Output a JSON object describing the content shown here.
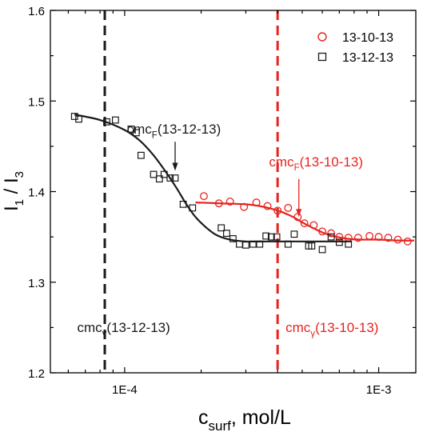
{
  "chart_data": {
    "type": "scatter",
    "title": "",
    "xlabel": {
      "main": "c",
      "sub": "surf",
      "rest": ",  mol/L"
    },
    "ylabel": {
      "p1": "I",
      "s1": "1",
      "p2": " / I",
      "s2": "3"
    },
    "x_scale": "log",
    "xlim": [
      5.1e-05,
      0.0014
    ],
    "ylim": [
      1.2,
      1.6
    ],
    "x_ticks": [
      {
        "value": 0.0001,
        "label": "1E-4"
      },
      {
        "value": 0.001,
        "label": "1E-3"
      }
    ],
    "y_ticks": [
      {
        "value": 1.2,
        "label": "1.2"
      },
      {
        "value": 1.3,
        "label": "1.3"
      },
      {
        "value": 1.4,
        "label": "1.4"
      },
      {
        "value": 1.5,
        "label": "1.5"
      },
      {
        "value": 1.6,
        "label": "1.6"
      }
    ],
    "legend_position": "top-right",
    "series": [
      {
        "name": "13-10-13",
        "marker": "circle",
        "color": "#e8231e",
        "x": [
          0.000205,
          0.000235,
          0.00026,
          0.000295,
          0.00033,
          0.000365,
          0.0004,
          0.00044,
          0.00048,
          0.00051,
          0.000555,
          0.0006,
          0.00065,
          0.0007,
          0.00076,
          0.00083,
          0.00092,
          0.001,
          0.00109,
          0.00119,
          0.0013
        ],
        "y": [
          1.395,
          1.387,
          1.389,
          1.383,
          1.388,
          1.384,
          1.379,
          1.382,
          1.372,
          1.365,
          1.363,
          1.356,
          1.354,
          1.35,
          1.349,
          1.349,
          1.351,
          1.35,
          1.349,
          1.347,
          1.345
        ],
        "fit_x": [
          0.00019,
          0.00024,
          0.0003,
          0.00034,
          0.00038,
          0.00042,
          0.00046,
          0.0005,
          0.00055,
          0.0006,
          0.00066,
          0.00075,
          0.00085,
          0.001,
          0.0012,
          0.00138
        ],
        "fit_y": [
          1.388,
          1.387,
          1.386,
          1.384,
          1.381,
          1.377,
          1.372,
          1.366,
          1.36,
          1.355,
          1.351,
          1.348,
          1.347,
          1.347,
          1.346,
          1.346
        ]
      },
      {
        "name": "13-12-13",
        "marker": "square",
        "color": "#1a1a1a",
        "x": [
          6.35e-05,
          6.6e-05,
          8.5e-05,
          9.2e-05,
          0.000106,
          0.000111,
          0.000116,
          0.00013,
          0.000137,
          0.000143,
          0.000151,
          0.000158,
          0.00017,
          0.000185,
          0.00024,
          0.000252,
          0.000267,
          0.000283,
          0.0003,
          0.00032,
          0.00034,
          0.00036,
          0.000378,
          0.000397,
          0.00044,
          0.000465,
          0.00053,
          0.000545,
          0.0006,
          0.00065,
          0.0007,
          0.00076
        ],
        "y": [
          1.483,
          1.48,
          1.477,
          1.479,
          1.469,
          1.465,
          1.44,
          1.419,
          1.414,
          1.419,
          1.415,
          1.415,
          1.386,
          1.382,
          1.36,
          1.354,
          1.348,
          1.342,
          1.341,
          1.342,
          1.342,
          1.351,
          1.35,
          1.35,
          1.342,
          1.353,
          1.34,
          1.34,
          1.336,
          1.35,
          1.344,
          1.342
        ],
        "fit_x": [
          6.35e-05,
          8e-05,
          0.0001,
          0.000115,
          0.00013,
          0.000145,
          0.00016,
          0.000175,
          0.00019,
          0.00021,
          0.00023,
          0.00026,
          0.0003,
          0.00036,
          0.00045,
          0.0006,
          0.00078
        ],
        "fit_y": [
          1.485,
          1.479,
          1.468,
          1.456,
          1.44,
          1.422,
          1.404,
          1.386,
          1.372,
          1.36,
          1.352,
          1.347,
          1.345,
          1.345,
          1.345,
          1.345,
          1.345
        ]
      }
    ],
    "reference_lines": [
      {
        "x": 8.35e-05,
        "color": "#1a1a1a",
        "style": "dashed",
        "label": {
          "main": "cmc",
          "sub": "γ",
          "rest": "(13-12-13)"
        },
        "label_x": 6.5e-05,
        "label_y": 1.245
      },
      {
        "x": 0.0004,
        "color": "#e8231e",
        "style": "dashed",
        "label": {
          "main": "cmc",
          "sub": "γ",
          "rest": "(13-10-13)"
        },
        "label_x": 0.00043,
        "label_y": 1.245
      }
    ],
    "annotations": [
      {
        "label": {
          "main": "cmc",
          "sub": "F",
          "rest": "(13-12-13)"
        },
        "color": "#1a1a1a",
        "text_x": 0.000102,
        "text_y": 1.464,
        "arrow_x": 0.000158,
        "arrow_from_y": 1.455,
        "arrow_to_y": 1.423
      },
      {
        "label": {
          "main": "cmc",
          "sub": "F",
          "rest": "(13-10-13)"
        },
        "color": "#e8231e",
        "text_x": 0.00037,
        "text_y": 1.428,
        "arrow_x": 0.000485,
        "arrow_from_y": 1.414,
        "arrow_to_y": 1.372
      }
    ]
  }
}
